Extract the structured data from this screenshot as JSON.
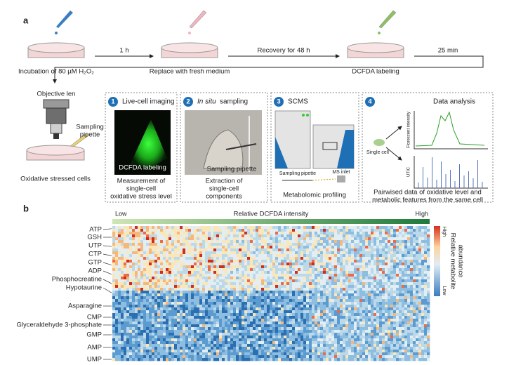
{
  "panel_a": {
    "label": "a",
    "steps": [
      "Incubation of 80 µM H₂O₂",
      "Replace with fresh medium",
      "DCFDA labeling"
    ],
    "arrows": [
      "1 h",
      "Recovery for 48 h",
      "25 min"
    ],
    "setup": {
      "objective": "Objective len",
      "pipette": [
        "Sampling",
        "pipette"
      ],
      "caption": "Oxidative stressed cells"
    },
    "boxes": [
      {
        "number": "1",
        "title": "Live-cell imaging",
        "image_label": "DCFDA labeling",
        "caption": [
          "Measurement of",
          "single-cell",
          "oxidative stress level"
        ]
      },
      {
        "number": "2",
        "title_italic": "In situ",
        "title": "sampling",
        "image_label": "Sampling pipette",
        "caption": [
          "Extraction of",
          "single-cell",
          "components"
        ]
      },
      {
        "number": "3",
        "title": "SCMS",
        "labels": [
          "Sampling pipette",
          "MS inlet"
        ],
        "caption": [
          "Metabolomic profiling"
        ]
      },
      {
        "number": "4",
        "title": "Data analysis",
        "labels": [
          "Single cell",
          "Florescent intensity",
          "UTIC"
        ],
        "caption": [
          "Pairwised data of oxidative level and",
          "metabolic features from the same cell"
        ]
      }
    ]
  },
  "panel_b": {
    "label": "b",
    "gradient": {
      "low": "Low",
      "title": "Relative DCFDA intensity",
      "high": "High"
    },
    "metabolites": [
      "ATP",
      "GSH",
      "UTP",
      "CTP",
      "GTP",
      "ADP",
      "Phosphocreatine",
      "Hypotaurine",
      "Asparagine",
      "CMP",
      "Glyceraldehyde 3-phosphate",
      "GMP",
      "AMP",
      "UMP"
    ],
    "colorbar": {
      "high": "High",
      "low": "Low",
      "title": [
        "Relative metabolite",
        "abundance"
      ]
    }
  }
}
